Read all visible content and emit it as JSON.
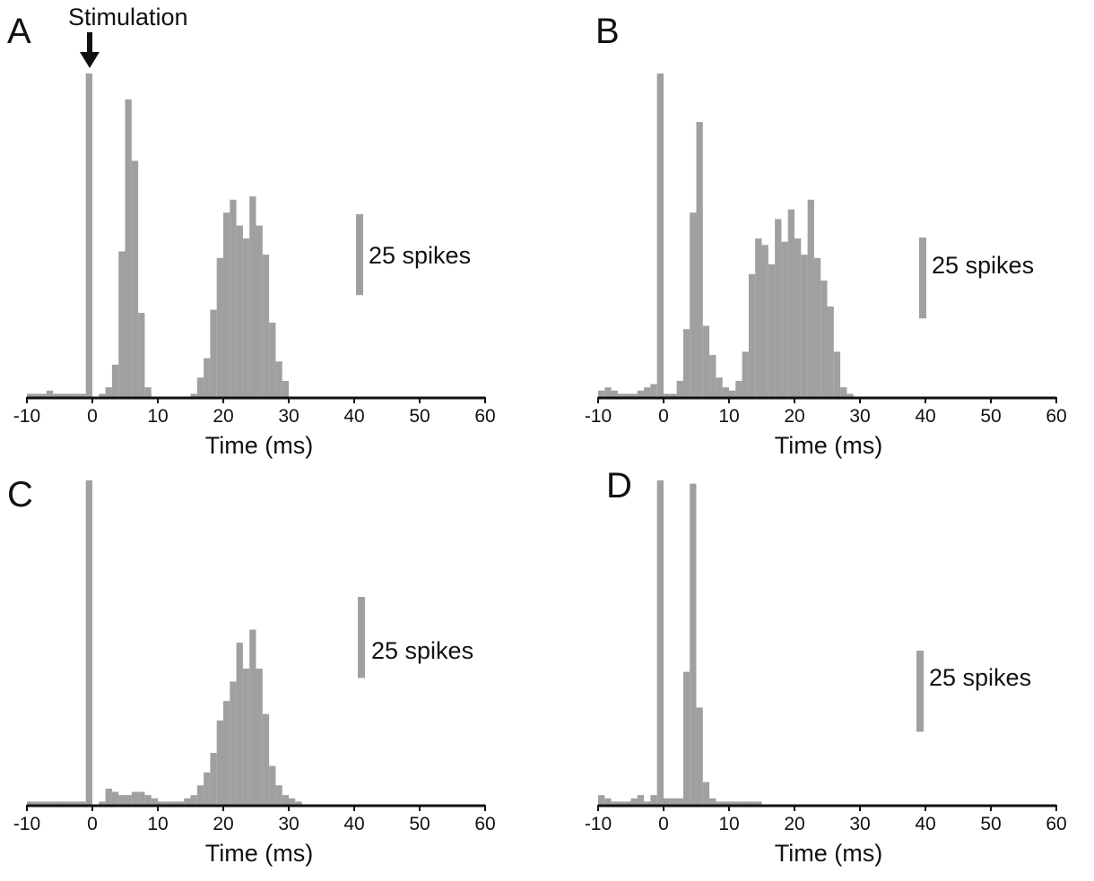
{
  "chart_data": [
    {
      "panel": "A",
      "type": "bar",
      "annotation": "Stimulation",
      "xlabel": "Time (ms)",
      "xlim": [
        -10,
        60
      ],
      "xticks": [
        -10,
        0,
        10,
        20,
        30,
        40,
        50,
        60
      ],
      "ylabel": "",
      "bin_width_ms": 1,
      "scale_bar": {
        "label": "25 spikes",
        "value": 25
      },
      "bars": [
        [
          -10,
          1
        ],
        [
          -9,
          1
        ],
        [
          -8,
          1
        ],
        [
          -7,
          2
        ],
        [
          -6,
          1
        ],
        [
          -5,
          1
        ],
        [
          -4,
          1
        ],
        [
          -3,
          1
        ],
        [
          -2,
          1
        ],
        [
          -1,
          100
        ],
        [
          1,
          1
        ],
        [
          2,
          3
        ],
        [
          3,
          10
        ],
        [
          4,
          45
        ],
        [
          5,
          92
        ],
        [
          6,
          73
        ],
        [
          7,
          26
        ],
        [
          8,
          3
        ],
        [
          15,
          1
        ],
        [
          16,
          6
        ],
        [
          17,
          12
        ],
        [
          18,
          27
        ],
        [
          19,
          43
        ],
        [
          20,
          57
        ],
        [
          21,
          61
        ],
        [
          22,
          53
        ],
        [
          23,
          49
        ],
        [
          24,
          62
        ],
        [
          25,
          53
        ],
        [
          26,
          44
        ],
        [
          27,
          23
        ],
        [
          28,
          11
        ],
        [
          29,
          5
        ]
      ]
    },
    {
      "panel": "B",
      "type": "bar",
      "xlabel": "Time (ms)",
      "xlim": [
        -10,
        60
      ],
      "xticks": [
        -10,
        0,
        10,
        20,
        30,
        40,
        50,
        60
      ],
      "ylabel": "",
      "bin_width_ms": 1,
      "scale_bar": {
        "label": "25 spikes",
        "value": 25
      },
      "bars": [
        [
          -10,
          2
        ],
        [
          -9,
          3
        ],
        [
          -8,
          2
        ],
        [
          -7,
          1
        ],
        [
          -6,
          1
        ],
        [
          -5,
          1
        ],
        [
          -4,
          2
        ],
        [
          -3,
          3
        ],
        [
          -2,
          4
        ],
        [
          -1,
          100
        ],
        [
          0,
          1
        ],
        [
          1,
          1
        ],
        [
          2,
          5
        ],
        [
          3,
          21
        ],
        [
          4,
          57
        ],
        [
          5,
          85
        ],
        [
          6,
          22
        ],
        [
          7,
          13
        ],
        [
          8,
          6
        ],
        [
          9,
          3
        ],
        [
          10,
          2
        ],
        [
          11,
          5
        ],
        [
          12,
          14
        ],
        [
          13,
          38
        ],
        [
          14,
          49
        ],
        [
          15,
          47
        ],
        [
          16,
          41
        ],
        [
          17,
          55
        ],
        [
          18,
          48
        ],
        [
          19,
          58
        ],
        [
          20,
          49
        ],
        [
          21,
          44
        ],
        [
          22,
          61
        ],
        [
          23,
          43
        ],
        [
          24,
          36
        ],
        [
          25,
          28
        ],
        [
          26,
          14
        ],
        [
          27,
          3
        ],
        [
          28,
          1
        ]
      ]
    },
    {
      "panel": "C",
      "type": "bar",
      "xlabel": "Time (ms)",
      "xlim": [
        -10,
        60
      ],
      "xticks": [
        -10,
        0,
        10,
        20,
        30,
        40,
        50,
        60
      ],
      "ylabel": "",
      "bin_width_ms": 1,
      "scale_bar": {
        "label": "25 spikes",
        "value": 25
      },
      "bars": [
        [
          -10,
          1
        ],
        [
          -9,
          1
        ],
        [
          -8,
          1
        ],
        [
          -7,
          1
        ],
        [
          -6,
          1
        ],
        [
          -5,
          1
        ],
        [
          -4,
          1
        ],
        [
          -3,
          1
        ],
        [
          -2,
          1
        ],
        [
          -1,
          100
        ],
        [
          1,
          1
        ],
        [
          2,
          5
        ],
        [
          3,
          4
        ],
        [
          4,
          3
        ],
        [
          5,
          3
        ],
        [
          6,
          4
        ],
        [
          7,
          4
        ],
        [
          8,
          3
        ],
        [
          9,
          2
        ],
        [
          10,
          1
        ],
        [
          11,
          1
        ],
        [
          12,
          1
        ],
        [
          13,
          1
        ],
        [
          14,
          2
        ],
        [
          15,
          3
        ],
        [
          16,
          6
        ],
        [
          17,
          10
        ],
        [
          18,
          16
        ],
        [
          19,
          26
        ],
        [
          20,
          32
        ],
        [
          21,
          38
        ],
        [
          22,
          50
        ],
        [
          23,
          42
        ],
        [
          24,
          54
        ],
        [
          25,
          42
        ],
        [
          26,
          28
        ],
        [
          27,
          12
        ],
        [
          28,
          6
        ],
        [
          29,
          3
        ],
        [
          30,
          2
        ],
        [
          31,
          1
        ]
      ]
    },
    {
      "panel": "D",
      "type": "bar",
      "xlabel": "Time (ms)",
      "xlim": [
        -10,
        60
      ],
      "xticks": [
        -10,
        0,
        10,
        20,
        30,
        40,
        50,
        60
      ],
      "ylabel": "",
      "bin_width_ms": 1,
      "scale_bar": {
        "label": "25 spikes",
        "value": 25
      },
      "bars": [
        [
          -10,
          3
        ],
        [
          -9,
          2
        ],
        [
          -8,
          1
        ],
        [
          -7,
          1
        ],
        [
          -6,
          1
        ],
        [
          -5,
          2
        ],
        [
          -4,
          3
        ],
        [
          -3,
          1
        ],
        [
          -2,
          3
        ],
        [
          -1,
          100
        ],
        [
          0,
          2
        ],
        [
          1,
          2
        ],
        [
          2,
          2
        ],
        [
          3,
          41
        ],
        [
          4,
          99
        ],
        [
          5,
          30
        ],
        [
          6,
          7
        ],
        [
          7,
          2
        ],
        [
          8,
          1
        ],
        [
          9,
          1
        ],
        [
          10,
          1
        ],
        [
          11,
          1
        ],
        [
          12,
          1
        ],
        [
          13,
          1
        ],
        [
          14,
          1
        ]
      ]
    }
  ]
}
